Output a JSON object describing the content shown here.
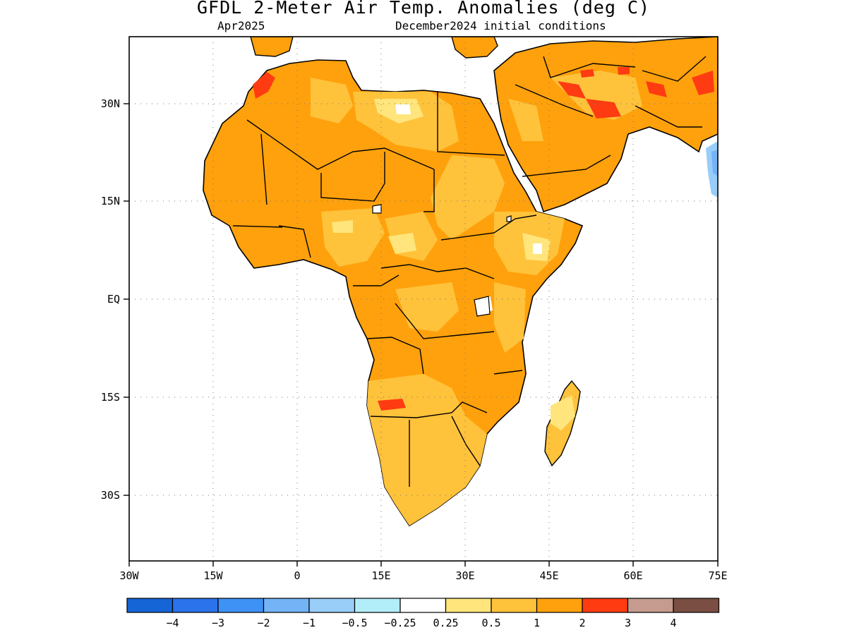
{
  "title": "GFDL 2-Meter Air Temp. Anomalies (deg C)",
  "subtitle_left": "Apr2025",
  "subtitle_right": "December2024 initial conditions",
  "map": {
    "lon_range": [
      -30,
      75
    ],
    "lat_range": [
      -40,
      38
    ],
    "lon_ticks": [
      "30W",
      "15W",
      "0",
      "15E",
      "30E",
      "45E",
      "60E",
      "75E"
    ],
    "lat_ticks": [
      "30N",
      "15N",
      "EQ",
      "15S",
      "30S"
    ],
    "grid": "dotted"
  },
  "colorbar": {
    "colors": [
      "#1565d6",
      "#2b73ea",
      "#3e92f5",
      "#74b3f6",
      "#98cdf8",
      "#b2eefa",
      "#ffffff",
      "#ffe57b",
      "#ffc23b",
      "#ffa10c",
      "#ff3b12",
      "#c59b8f",
      "#7a4e43"
    ],
    "labels": [
      "-4",
      "-3",
      "-2",
      "-1",
      "-0.5",
      "-0.25",
      "0.25",
      "0.5",
      "1",
      "2",
      "3",
      "4"
    ]
  }
}
